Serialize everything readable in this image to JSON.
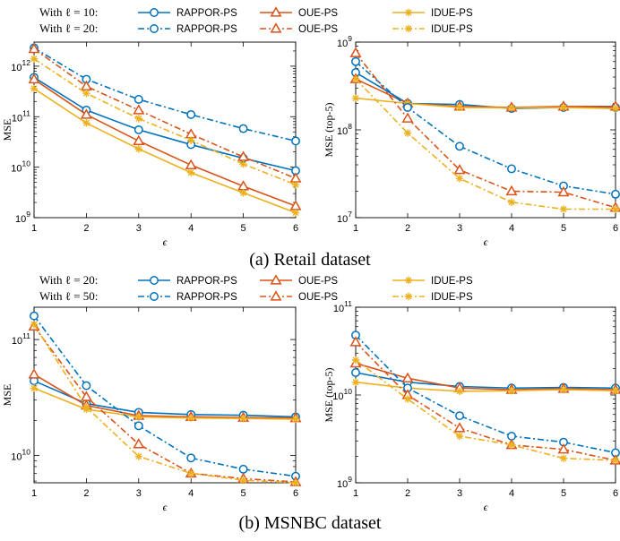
{
  "colors": {
    "rappor": "#0072BD",
    "oue": "#D95319",
    "idue": "#EDB120",
    "axis": "#000000",
    "grid": "#e6e6e6"
  },
  "captions": {
    "top": "(a) Retail dataset",
    "bottom": "(b) MSNBC dataset"
  },
  "legends": [
    {
      "rows": [
        {
          "prefix": "With ℓ = 10:",
          "style": "solid",
          "items": [
            "RAPPOR-PS",
            "OUE-PS",
            "IDUE-PS"
          ]
        },
        {
          "prefix": "With ℓ = 20:",
          "style": "dashdot",
          "items": [
            "RAPPOR-PS",
            "OUE-PS",
            "IDUE-PS"
          ]
        }
      ]
    },
    {
      "rows": [
        {
          "prefix": "With ℓ = 20:",
          "style": "solid",
          "items": [
            "RAPPOR-PS",
            "OUE-PS",
            "IDUE-PS"
          ]
        },
        {
          "prefix": "With ℓ = 50:",
          "style": "dashdot",
          "items": [
            "RAPPOR-PS",
            "OUE-PS",
            "IDUE-PS"
          ]
        }
      ]
    }
  ],
  "chart_data": [
    {
      "type": "line",
      "panel": "retail-mse",
      "xlabel": "ϵ",
      "ylabel": "MSE",
      "yscale": "log",
      "ylim": [
        1000000000.0,
        3000000000000.0
      ],
      "yticks": [
        1000000000.0,
        10000000000.0,
        100000000000.0,
        1000000000000.0
      ],
      "ytick_labels": [
        [
          "10",
          "9"
        ],
        [
          "10",
          "10"
        ],
        [
          "10",
          "11"
        ],
        [
          "10",
          "12"
        ]
      ],
      "x": [
        1,
        2,
        3,
        4,
        5,
        6
      ],
      "xlim": [
        1,
        6
      ],
      "series": [
        {
          "name": "RAPPOR-PS",
          "l": "10",
          "style": "solid",
          "marker": "circle",
          "color_key": "rappor",
          "values": [
            600000000000.0,
            135000000000.0,
            55000000000.0,
            28000000000.0,
            15000000000.0,
            8500000000.0
          ]
        },
        {
          "name": "OUE-PS",
          "l": "10",
          "style": "solid",
          "marker": "triangle",
          "color_key": "oue",
          "values": [
            550000000000.0,
            110000000000.0,
            33000000000.0,
            11000000000.0,
            4200000000.0,
            1700000000.0
          ]
        },
        {
          "name": "IDUE-PS",
          "l": "10",
          "style": "solid",
          "marker": "star",
          "color_key": "idue",
          "values": [
            360000000000.0,
            75000000000.0,
            23000000000.0,
            7800000000.0,
            3100000000.0,
            1250000000.0
          ]
        },
        {
          "name": "RAPPOR-PS",
          "l": "20",
          "style": "dashdot",
          "marker": "circle",
          "color_key": "rappor",
          "values": [
            2300000000000.0,
            550000000000.0,
            220000000000.0,
            110000000000.0,
            58000000000.0,
            33000000000.0
          ]
        },
        {
          "name": "OUE-PS",
          "l": "20",
          "style": "dashdot",
          "marker": "triangle",
          "color_key": "oue",
          "values": [
            2200000000000.0,
            400000000000.0,
            135000000000.0,
            45000000000.0,
            16000000000.0,
            6000000000.0
          ]
        },
        {
          "name": "IDUE-PS",
          "l": "20",
          "style": "dashdot",
          "marker": "star",
          "color_key": "idue",
          "values": [
            1400000000000.0,
            290000000000.0,
            92000000000.0,
            34000000000.0,
            11500000000.0,
            4500000000.0
          ]
        }
      ]
    },
    {
      "type": "line",
      "panel": "retail-top5",
      "xlabel": "ϵ",
      "ylabel": "MSE (top-5)",
      "yscale": "log",
      "ylim": [
        10000000.0,
        1000000000.0
      ],
      "yticks": [
        10000000.0,
        100000000.0,
        1000000000.0
      ],
      "ytick_labels": [
        [
          "10",
          "7"
        ],
        [
          "10",
          "8"
        ],
        [
          "10",
          "9"
        ]
      ],
      "x": [
        1,
        2,
        3,
        4,
        5,
        6
      ],
      "xlim": [
        1,
        6
      ],
      "series": [
        {
          "name": "RAPPOR-PS",
          "l": "10",
          "style": "solid",
          "marker": "circle",
          "color_key": "rappor",
          "values": [
            450000000.0,
            200000000.0,
            195000000.0,
            175000000.0,
            180000000.0,
            180000000.0
          ]
        },
        {
          "name": "OUE-PS",
          "l": "10",
          "style": "solid",
          "marker": "triangle",
          "color_key": "oue",
          "values": [
            380000000.0,
            200000000.0,
            185000000.0,
            180000000.0,
            185000000.0,
            185000000.0
          ]
        },
        {
          "name": "IDUE-PS",
          "l": "10",
          "style": "solid",
          "marker": "star",
          "color_key": "idue",
          "values": [
            230000000.0,
            200000000.0,
            180000000.0,
            178000000.0,
            180000000.0,
            175000000.0
          ]
        },
        {
          "name": "RAPPOR-PS",
          "l": "20",
          "style": "dashdot",
          "marker": "circle",
          "color_key": "rappor",
          "values": [
            600000000.0,
            180000000.0,
            65000000.0,
            36000000.0,
            23000000.0,
            18500000.0
          ]
        },
        {
          "name": "OUE-PS",
          "l": "20",
          "style": "dashdot",
          "marker": "triangle",
          "color_key": "oue",
          "values": [
            750000000.0,
            135000000.0,
            35000000.0,
            20000000.0,
            19500000.0,
            13000000.0
          ]
        },
        {
          "name": "IDUE-PS",
          "l": "20",
          "style": "dashdot",
          "marker": "star",
          "color_key": "idue",
          "values": [
            380000000.0,
            92000000.0,
            28000000.0,
            15000000.0,
            12500000.0,
            12500000.0
          ]
        }
      ]
    },
    {
      "type": "line",
      "panel": "msnbc-mse",
      "xlabel": "ϵ",
      "ylabel": "MSE",
      "yscale": "log",
      "ylim": [
        5800000000.0,
        190000000000.0
      ],
      "yticks": [
        10000000000.0,
        100000000000.0
      ],
      "ytick_labels": [
        [
          "10",
          "10"
        ],
        [
          "10",
          "11"
        ]
      ],
      "x": [
        1,
        2,
        3,
        4,
        5,
        6
      ],
      "xlim": [
        1,
        6
      ],
      "series": [
        {
          "name": "RAPPOR-PS",
          "l": "20",
          "style": "solid",
          "marker": "circle",
          "color_key": "rappor",
          "values": [
            44000000000.0,
            28000000000.0,
            23500000000.0,
            22500000000.0,
            22200000000.0,
            21500000000.0
          ]
        },
        {
          "name": "OUE-PS",
          "l": "20",
          "style": "solid",
          "marker": "triangle",
          "color_key": "oue",
          "values": [
            50000000000.0,
            27000000000.0,
            22000000000.0,
            21500000000.0,
            21200000000.0,
            21000000000.0
          ]
        },
        {
          "name": "IDUE-PS",
          "l": "20",
          "style": "solid",
          "marker": "star",
          "color_key": "idue",
          "values": [
            38000000000.0,
            25000000000.0,
            21500000000.0,
            21000000000.0,
            20800000000.0,
            20500000000.0
          ]
        },
        {
          "name": "RAPPOR-PS",
          "l": "50",
          "style": "dashdot",
          "marker": "circle",
          "color_key": "rappor",
          "values": [
            160000000000.0,
            40000000000.0,
            18000000000.0,
            9500000000.0,
            7600000000.0,
            6600000000.0
          ]
        },
        {
          "name": "OUE-PS",
          "l": "50",
          "style": "dashdot",
          "marker": "triangle",
          "color_key": "oue",
          "values": [
            130000000000.0,
            32000000000.0,
            12500000000.0,
            7000000000.0,
            6300000000.0,
            5900000000.0
          ]
        },
        {
          "name": "IDUE-PS",
          "l": "50",
          "style": "dashdot",
          "marker": "star",
          "color_key": "idue",
          "values": [
            135000000000.0,
            26000000000.0,
            9800000000.0,
            7000000000.0,
            6100000000.0,
            5800000000.0
          ]
        }
      ]
    },
    {
      "type": "line",
      "panel": "msnbc-top5",
      "xlabel": "ϵ",
      "ylabel": "MSE (top-5)",
      "yscale": "log",
      "ylim": [
        1000000000.0,
        100000000000.0
      ],
      "yticks": [
        1000000000.0,
        10000000000.0,
        100000000000.0
      ],
      "ytick_labels": [
        [
          "10",
          "9"
        ],
        [
          "10",
          "10"
        ],
        [
          "10",
          "11"
        ]
      ],
      "x": [
        1,
        2,
        3,
        4,
        5,
        6
      ],
      "xlim": [
        1,
        6
      ],
      "series": [
        {
          "name": "RAPPOR-PS",
          "l": "20",
          "style": "solid",
          "marker": "circle",
          "color_key": "rappor",
          "values": [
            18000000000.0,
            14000000000.0,
            12500000000.0,
            12000000000.0,
            12200000000.0,
            12000000000.0
          ]
        },
        {
          "name": "OUE-PS",
          "l": "20",
          "style": "solid",
          "marker": "triangle",
          "color_key": "oue",
          "values": [
            23000000000.0,
            15500000000.0,
            12000000000.0,
            11500000000.0,
            11800000000.0,
            11500000000.0
          ]
        },
        {
          "name": "IDUE-PS",
          "l": "20",
          "style": "solid",
          "marker": "star",
          "color_key": "idue",
          "values": [
            14000000000.0,
            12000000000.0,
            11000000000.0,
            11200000000.0,
            11500000000.0,
            11200000000.0
          ]
        },
        {
          "name": "RAPPOR-PS",
          "l": "50",
          "style": "dashdot",
          "marker": "circle",
          "color_key": "rappor",
          "values": [
            48000000000.0,
            12000000000.0,
            5800000000.0,
            3400000000.0,
            2900000000.0,
            2200000000.0
          ]
        },
        {
          "name": "OUE-PS",
          "l": "50",
          "style": "dashdot",
          "marker": "triangle",
          "color_key": "oue",
          "values": [
            40000000000.0,
            10000000000.0,
            4200000000.0,
            2700000000.0,
            2400000000.0,
            1800000000.0
          ]
        },
        {
          "name": "IDUE-PS",
          "l": "50",
          "style": "dashdot",
          "marker": "star",
          "color_key": "idue",
          "values": [
            25000000000.0,
            9000000000.0,
            3400000000.0,
            2700000000.0,
            1900000000.0,
            1800000000.0
          ]
        }
      ]
    }
  ]
}
